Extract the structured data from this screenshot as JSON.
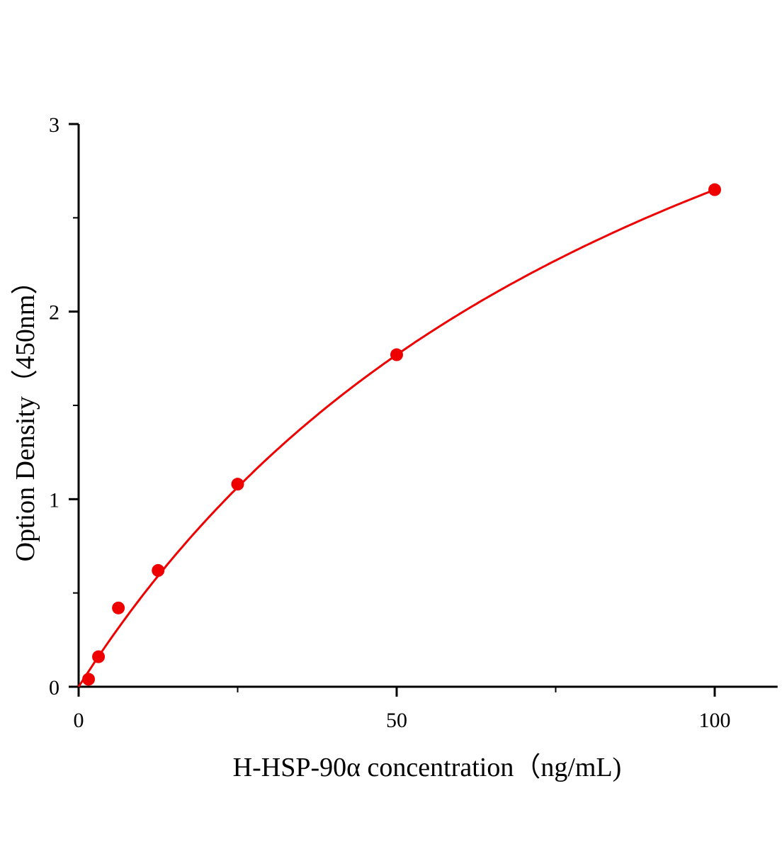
{
  "chart_data": {
    "type": "scatter",
    "title": "",
    "xlabel": "H-HSP-90α concentration（ng/mL)",
    "ylabel": "Option Density（450nm）",
    "xlim": [
      0,
      110
    ],
    "ylim": [
      0,
      3
    ],
    "x_ticks": [
      0,
      50,
      100
    ],
    "x_tick_labels": [
      "0",
      "50",
      "100"
    ],
    "x_minor_ticks": [
      25,
      75
    ],
    "y_ticks": [
      0,
      1,
      2,
      3
    ],
    "y_tick_labels": [
      "0",
      "1",
      "2",
      "3"
    ],
    "y_minor_ticks": [
      0.5,
      1.5,
      2.5
    ],
    "grid": false,
    "legend": "none",
    "color": "#ee0000",
    "series": [
      {
        "x": [
          1.5625,
          3.125,
          6.25,
          12.5,
          25,
          50,
          100
        ],
        "y": [
          0.04,
          0.16,
          0.42,
          0.62,
          1.08,
          1.77,
          2.65
        ]
      }
    ],
    "fit_curve": {
      "model": "y = V*x/(K+x)",
      "V": 5.27,
      "K": 98.9,
      "x_range": [
        0,
        100
      ]
    }
  }
}
